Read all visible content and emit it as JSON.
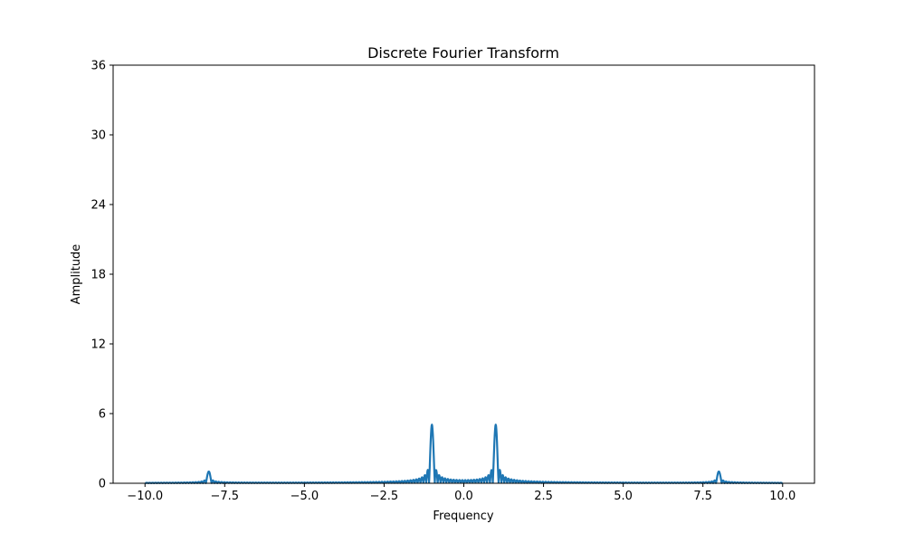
{
  "chart_data": {
    "type": "line",
    "title": "Discrete Fourier Transform",
    "xlabel": "Frequency",
    "ylabel": "Amplitude",
    "xlim": [
      -11,
      11
    ],
    "ylim": [
      0,
      36
    ],
    "xticks": [
      -10.0,
      -7.5,
      -5.0,
      -2.5,
      0.0,
      2.5,
      5.0,
      7.5,
      10.0
    ],
    "xtick_labels": [
      "−10.0",
      "−7.5",
      "−5.0",
      "−2.5",
      "0.0",
      "2.5",
      "5.0",
      "7.5",
      "10.0"
    ],
    "yticks": [
      0,
      6,
      12,
      18,
      24,
      30,
      36
    ],
    "ytick_labels": [
      "0",
      "6",
      "12",
      "18",
      "24",
      "30",
      "36"
    ],
    "grid": false,
    "color": "#1f77b4",
    "series": [
      {
        "peaks": [
          {
            "freq": -8,
            "amplitude": 1.0
          },
          {
            "freq": -1,
            "amplitude": 5.0
          },
          {
            "freq": 1,
            "amplitude": 5.0
          },
          {
            "freq": 8,
            "amplitude": 1.0
          }
        ],
        "x_range": [
          -10,
          10
        ]
      }
    ]
  }
}
